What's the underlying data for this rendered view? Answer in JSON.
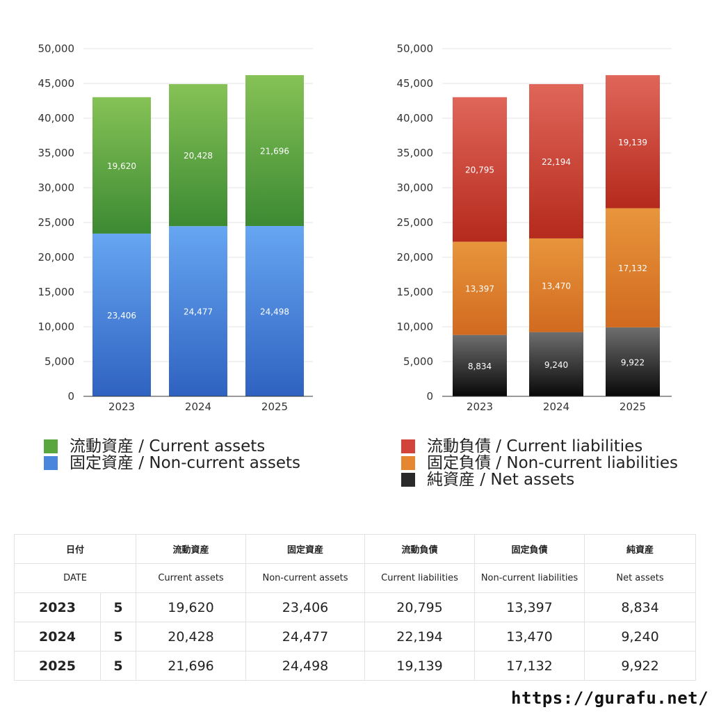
{
  "chart_data": [
    {
      "type": "bar",
      "stacked": true,
      "categories": [
        "2023",
        "2024",
        "2025"
      ],
      "ylim": [
        0,
        50000
      ],
      "yticks": [
        0,
        5000,
        10000,
        15000,
        20000,
        25000,
        30000,
        35000,
        40000,
        45000,
        50000
      ],
      "grid": true,
      "series": [
        {
          "name": "固定資産 / Non-current assets",
          "values": [
            23406,
            24477,
            24498
          ],
          "color_top": "#66a6f2",
          "color_bottom": "#2f62c0"
        },
        {
          "name": "流動資産 / Current assets",
          "values": [
            19620,
            20428,
            21696
          ],
          "color_top": "#86c256",
          "color_bottom": "#3c8a33"
        }
      ]
    },
    {
      "type": "bar",
      "stacked": true,
      "categories": [
        "2023",
        "2024",
        "2025"
      ],
      "ylim": [
        0,
        50000
      ],
      "yticks": [
        0,
        5000,
        10000,
        15000,
        20000,
        25000,
        30000,
        35000,
        40000,
        45000,
        50000
      ],
      "grid": true,
      "series": [
        {
          "name": "純資産 / Net assets",
          "values": [
            8834,
            9240,
            9922
          ],
          "color_top": "#6e6e6e",
          "color_bottom": "#080808"
        },
        {
          "name": "固定負債 / Non-current liabilities",
          "values": [
            13397,
            13470,
            17132
          ],
          "color_top": "#e8953c",
          "color_bottom": "#d16a1f"
        },
        {
          "name": "流動負債 / Current liabilities",
          "values": [
            20795,
            22194,
            19139
          ],
          "color_top": "#e0665a",
          "color_bottom": "#b52a1c"
        }
      ]
    }
  ],
  "legends": {
    "left": [
      {
        "label": "流動資産 / Current assets",
        "color": "#5aa63e"
      },
      {
        "label": "固定資産 / Non-current assets",
        "color": "#4a86dc"
      }
    ],
    "right": [
      {
        "label": "流動負債 / Current liabilities",
        "color": "#d2443a"
      },
      {
        "label": "固定負債 / Non-current liabilities",
        "color": "#e58631"
      },
      {
        "label": "純資産 / Net assets",
        "color": "#2a2a2a"
      }
    ]
  },
  "table": {
    "header_jp": [
      "日付",
      "流動資産",
      "固定資産",
      "流動負債",
      "固定負債",
      "純資産"
    ],
    "header_en": [
      "DATE",
      "Current assets",
      "Non-current assets",
      "Current liabilities",
      "Non-current liabilities",
      "Net assets"
    ],
    "rows": [
      {
        "year": "2023",
        "month": "5",
        "values": [
          "19,620",
          "23,406",
          "20,795",
          "13,397",
          "8,834"
        ]
      },
      {
        "year": "2024",
        "month": "5",
        "values": [
          "20,428",
          "24,477",
          "22,194",
          "13,470",
          "9,240"
        ]
      },
      {
        "year": "2025",
        "month": "5",
        "values": [
          "21,696",
          "24,498",
          "19,139",
          "17,132",
          "9,922"
        ]
      }
    ]
  },
  "footer": {
    "url": "https://gurafu.net/"
  }
}
